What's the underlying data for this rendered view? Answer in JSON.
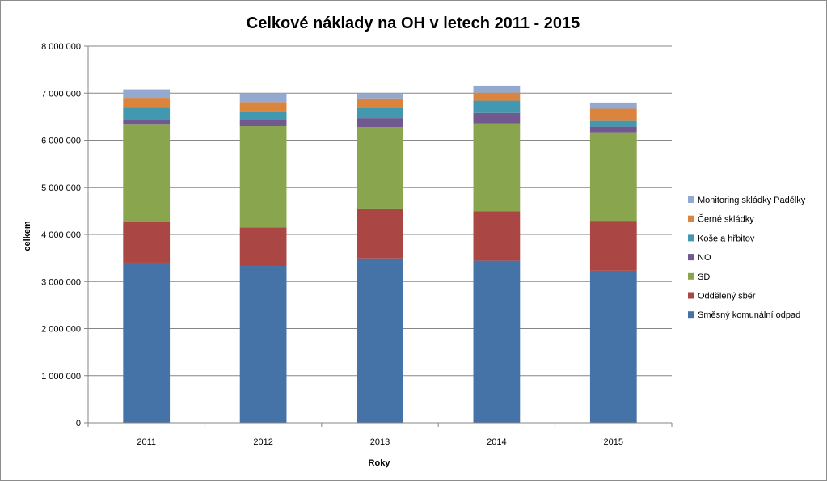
{
  "chart_data": {
    "type": "bar",
    "stacked": true,
    "title": "Celkové náklady na OH v letech 2011 - 2015",
    "xlabel": "Roky",
    "ylabel": "celkem",
    "categories": [
      "2011",
      "2012",
      "2013",
      "2014",
      "2015"
    ],
    "ylim": [
      0,
      8000000
    ],
    "yticks": [
      0,
      1000000,
      2000000,
      3000000,
      4000000,
      5000000,
      6000000,
      7000000,
      8000000
    ],
    "ytick_labels": [
      "0",
      "1 000 000",
      "2 000 000",
      "3 000 000",
      "4 000 000",
      "5 000 000",
      "6 000 000",
      "7 000 000",
      "8 000 000"
    ],
    "grid": "horizontal",
    "legend_position": "right",
    "series": [
      {
        "name": "Směsný komunální odpad",
        "color": "#4572A7",
        "values": [
          3400000,
          3330000,
          3490000,
          3440000,
          3230000
        ]
      },
      {
        "name": "Oddělený sběr",
        "color": "#AA4643",
        "values": [
          870000,
          820000,
          1060000,
          1050000,
          1060000
        ]
      },
      {
        "name": "SD",
        "color": "#89A54E",
        "values": [
          2060000,
          2150000,
          1730000,
          1870000,
          1880000
        ]
      },
      {
        "name": "NO",
        "color": "#71588F",
        "values": [
          120000,
          150000,
          190000,
          220000,
          120000
        ]
      },
      {
        "name": "Koše a hřbitov",
        "color": "#4198AF",
        "values": [
          260000,
          160000,
          220000,
          260000,
          120000
        ]
      },
      {
        "name": "Černé skládky",
        "color": "#DB843D",
        "values": [
          190000,
          200000,
          200000,
          170000,
          260000
        ]
      },
      {
        "name": "Monitoring skládky Padělky",
        "color": "#93A9CF",
        "values": [
          180000,
          180000,
          100000,
          150000,
          130000
        ]
      }
    ]
  }
}
